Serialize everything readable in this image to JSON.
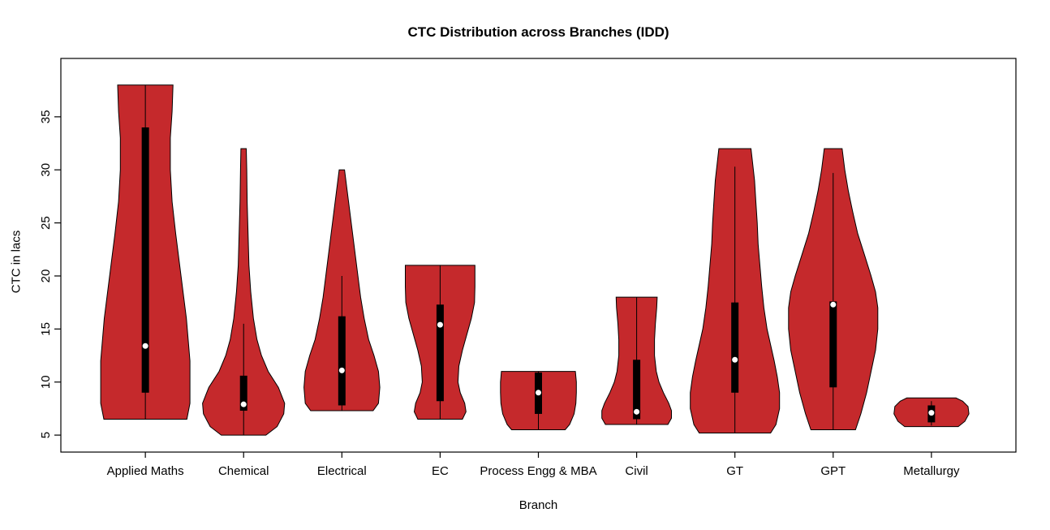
{
  "chart_data": {
    "type": "violin",
    "title": "CTC Distribution across Branches (IDD)",
    "xlabel": "Branch",
    "ylabel": "CTC in lacs",
    "yticks": [
      5,
      10,
      15,
      20,
      25,
      30,
      35
    ],
    "ylim": [
      3.4,
      40.5
    ],
    "grid": false,
    "legend": "none",
    "fill_color": "#C5292C",
    "outline_color": "#000000",
    "box_color": "#000000",
    "median_dot_color": "#ffffff",
    "categories": [
      "Applied Maths",
      "Chemical",
      "Electrical",
      "EC",
      "Process Engg & MBA",
      "Civil",
      "GT",
      "GPT",
      "Metallurgy"
    ],
    "series": [
      {
        "branch": "Applied Maths",
        "min": 6.5,
        "max": 38,
        "q1": 9,
        "q3": 34,
        "median": 13.4,
        "whisker_low": 6.5,
        "whisker_high": 38,
        "profile": [
          [
            6.5,
            0.93
          ],
          [
            8,
            1.0
          ],
          [
            12,
            1.0
          ],
          [
            16,
            0.92
          ],
          [
            20,
            0.8
          ],
          [
            24,
            0.68
          ],
          [
            27,
            0.6
          ],
          [
            30,
            0.56
          ],
          [
            33,
            0.56
          ],
          [
            35.5,
            0.6
          ],
          [
            38,
            0.62
          ]
        ]
      },
      {
        "branch": "Chemical",
        "min": 5,
        "max": 32,
        "q1": 7.3,
        "q3": 10.6,
        "median": 7.9,
        "whisker_low": 5,
        "whisker_high": 15.5,
        "profile": [
          [
            5,
            0.5
          ],
          [
            5.8,
            0.75
          ],
          [
            7,
            0.9
          ],
          [
            8,
            0.92
          ],
          [
            9.5,
            0.78
          ],
          [
            11,
            0.55
          ],
          [
            12.5,
            0.4
          ],
          [
            14,
            0.3
          ],
          [
            16,
            0.22
          ],
          [
            18.5,
            0.16
          ],
          [
            21,
            0.12
          ],
          [
            24,
            0.1
          ],
          [
            27,
            0.08
          ],
          [
            30,
            0.07
          ],
          [
            32,
            0.06
          ]
        ]
      },
      {
        "branch": "Electrical",
        "min": 7.3,
        "max": 30,
        "q1": 7.8,
        "q3": 16.2,
        "median": 11.1,
        "whisker_low": 7.3,
        "whisker_high": 20,
        "profile": [
          [
            7.3,
            0.7
          ],
          [
            8,
            0.82
          ],
          [
            9.5,
            0.85
          ],
          [
            11,
            0.82
          ],
          [
            12.5,
            0.72
          ],
          [
            14,
            0.6
          ],
          [
            16,
            0.5
          ],
          [
            18,
            0.42
          ],
          [
            20,
            0.36
          ],
          [
            22,
            0.3
          ],
          [
            24,
            0.24
          ],
          [
            26,
            0.18
          ],
          [
            28,
            0.12
          ],
          [
            30,
            0.06
          ]
        ]
      },
      {
        "branch": "EC",
        "min": 6.5,
        "max": 21,
        "q1": 8.2,
        "q3": 17.3,
        "median": 15.4,
        "whisker_low": 6.5,
        "whisker_high": 21,
        "profile": [
          [
            6.5,
            0.5
          ],
          [
            7.2,
            0.58
          ],
          [
            8,
            0.55
          ],
          [
            9,
            0.45
          ],
          [
            10,
            0.4
          ],
          [
            11.5,
            0.42
          ],
          [
            13,
            0.5
          ],
          [
            14.5,
            0.6
          ],
          [
            16,
            0.7
          ],
          [
            17.5,
            0.77
          ],
          [
            19,
            0.78
          ],
          [
            21,
            0.78
          ]
        ]
      },
      {
        "branch": "Process Engg & MBA",
        "min": 5.5,
        "max": 11,
        "q1": 7,
        "q3": 10.9,
        "median": 9,
        "whisker_low": 5.5,
        "whisker_high": 11,
        "profile": [
          [
            5.5,
            0.6
          ],
          [
            6,
            0.7
          ],
          [
            7,
            0.8
          ],
          [
            8,
            0.84
          ],
          [
            9,
            0.85
          ],
          [
            10,
            0.85
          ],
          [
            11,
            0.83
          ]
        ]
      },
      {
        "branch": "Civil",
        "min": 6,
        "max": 18,
        "q1": 6.5,
        "q3": 12.1,
        "median": 7.2,
        "whisker_low": 6,
        "whisker_high": 18,
        "profile": [
          [
            6,
            0.7
          ],
          [
            6.6,
            0.78
          ],
          [
            7.3,
            0.78
          ],
          [
            8,
            0.72
          ],
          [
            9,
            0.6
          ],
          [
            10,
            0.5
          ],
          [
            11,
            0.44
          ],
          [
            12.5,
            0.4
          ],
          [
            14,
            0.4
          ],
          [
            15.5,
            0.42
          ],
          [
            17,
            0.45
          ],
          [
            18,
            0.46
          ]
        ]
      },
      {
        "branch": "GT",
        "min": 5.2,
        "max": 32,
        "q1": 9,
        "q3": 17.5,
        "median": 12.1,
        "whisker_low": 5.2,
        "whisker_high": 30.3,
        "profile": [
          [
            5.2,
            0.8
          ],
          [
            6,
            0.92
          ],
          [
            7.5,
            1.0
          ],
          [
            9,
            1.0
          ],
          [
            10.5,
            0.95
          ],
          [
            12,
            0.88
          ],
          [
            13.5,
            0.8
          ],
          [
            15,
            0.72
          ],
          [
            17,
            0.65
          ],
          [
            19,
            0.6
          ],
          [
            21,
            0.56
          ],
          [
            23,
            0.52
          ],
          [
            25,
            0.5
          ],
          [
            27,
            0.47
          ],
          [
            29,
            0.44
          ],
          [
            30.5,
            0.4
          ],
          [
            32,
            0.36
          ]
        ]
      },
      {
        "branch": "GPT",
        "min": 5.5,
        "max": 32,
        "q1": 9.5,
        "q3": 17.6,
        "median": 17.3,
        "whisker_low": 5.5,
        "whisker_high": 29.7,
        "profile": [
          [
            5.5,
            0.5
          ],
          [
            7,
            0.62
          ],
          [
            9,
            0.75
          ],
          [
            11,
            0.85
          ],
          [
            13,
            0.95
          ],
          [
            15,
            1.0
          ],
          [
            17,
            1.0
          ],
          [
            18.5,
            0.95
          ],
          [
            20,
            0.85
          ],
          [
            22,
            0.7
          ],
          [
            24,
            0.55
          ],
          [
            26,
            0.44
          ],
          [
            28,
            0.34
          ],
          [
            30,
            0.26
          ],
          [
            32,
            0.2
          ]
        ]
      },
      {
        "branch": "Metallurgy",
        "min": 5.8,
        "max": 8.5,
        "q1": 6.2,
        "q3": 7.8,
        "median": 7.1,
        "whisker_low": 5.9,
        "whisker_high": 8.2,
        "profile": [
          [
            5.8,
            0.6
          ],
          [
            6.3,
            0.75
          ],
          [
            7,
            0.84
          ],
          [
            7.7,
            0.82
          ],
          [
            8.2,
            0.7
          ],
          [
            8.5,
            0.55
          ]
        ]
      }
    ]
  }
}
